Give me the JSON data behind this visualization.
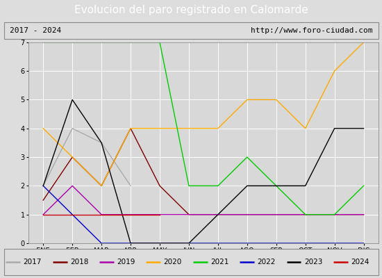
{
  "title": "Evolucion del paro registrado en Calomarde",
  "subtitle_left": "2017 - 2024",
  "subtitle_right": "http://www.foro-ciudad.com",
  "x_labels": [
    "ENE",
    "FEB",
    "MAR",
    "ABR",
    "MAY",
    "JUN",
    "JUL",
    "AGO",
    "SEP",
    "OCT",
    "NOV",
    "DIC"
  ],
  "ylim": [
    0.0,
    7.0
  ],
  "yticks": [
    0.0,
    1.0,
    2.0,
    3.0,
    4.0,
    5.0,
    6.0,
    7.0
  ],
  "series": {
    "2017": {
      "data": [
        2.0,
        4.0,
        3.5,
        2.0,
        null,
        null,
        null,
        null,
        null,
        null,
        null,
        null
      ],
      "color": "#aaaaaa",
      "linewidth": 1.0
    },
    "2018": {
      "data": [
        1.5,
        3.0,
        2.0,
        4.0,
        2.0,
        1.0,
        1.0,
        1.0,
        1.0,
        1.0,
        1.0,
        1.0
      ],
      "color": "#800000",
      "linewidth": 1.0
    },
    "2019": {
      "data": [
        1.0,
        2.0,
        1.0,
        1.0,
        1.0,
        1.0,
        1.0,
        1.0,
        1.0,
        1.0,
        1.0,
        1.0
      ],
      "color": "#aa00aa",
      "linewidth": 1.0
    },
    "2020": {
      "data": [
        4.0,
        3.0,
        2.0,
        4.0,
        4.0,
        4.0,
        4.0,
        5.0,
        5.0,
        4.0,
        6.0,
        7.0
      ],
      "color": "#ffaa00",
      "linewidth": 1.0
    },
    "2021": {
      "data": [
        7.0,
        7.0,
        7.0,
        7.0,
        7.0,
        2.0,
        2.0,
        3.0,
        2.0,
        1.0,
        1.0,
        2.0
      ],
      "color": "#00cc00",
      "linewidth": 1.0
    },
    "2022": {
      "data": [
        2.0,
        1.0,
        0.0,
        0.0,
        0.0,
        0.0,
        0.0,
        0.0,
        0.0,
        0.0,
        0.0,
        0.0
      ],
      "color": "#0000cc",
      "linewidth": 1.0
    },
    "2023": {
      "data": [
        2.0,
        5.0,
        3.5,
        0.0,
        0.0,
        0.0,
        1.0,
        2.0,
        2.0,
        2.0,
        4.0,
        4.0
      ],
      "color": "#000000",
      "linewidth": 1.0
    },
    "2024": {
      "data": [
        1.0,
        1.0,
        1.0,
        1.0,
        1.0,
        null,
        null,
        null,
        null,
        null,
        null,
        null
      ],
      "color": "#cc0000",
      "linewidth": 1.0
    }
  },
  "background_color": "#dddddd",
  "plot_bg_color": "#d8d8d8",
  "title_bg_color": "#4472c4",
  "title_color": "#ffffff",
  "title_fontsize": 11,
  "grid_color": "#ffffff",
  "legend_order": [
    "2017",
    "2018",
    "2019",
    "2020",
    "2021",
    "2022",
    "2023",
    "2024"
  ]
}
